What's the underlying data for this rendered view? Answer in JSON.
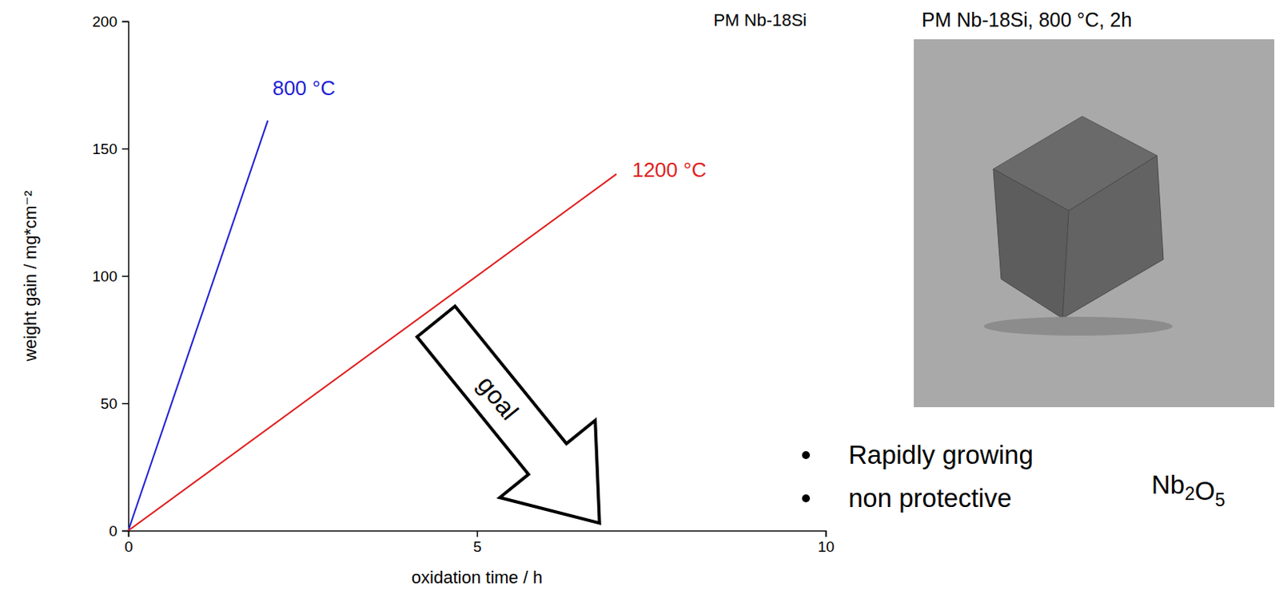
{
  "chart_data": {
    "type": "line",
    "title": "PM Nb-18Si",
    "x_label": "oxidation time / h",
    "y_label": "weight gain / mg*cm⁻²",
    "xlim": [
      0,
      10
    ],
    "xticks": [
      0,
      5,
      10
    ],
    "ylim": [
      0,
      200
    ],
    "yticks": [
      0,
      50,
      100,
      150,
      200
    ],
    "series": [
      {
        "name": "800 °C",
        "color": "#1f1fd6",
        "x": [
          0,
          2
        ],
        "values": [
          0,
          161
        ]
      },
      {
        "name": "1200 °C",
        "color": "#e01e1e",
        "x": [
          0,
          7
        ],
        "values": [
          0,
          140
        ]
      }
    ],
    "annotations": [
      {
        "text": "goal"
      }
    ]
  },
  "photo": {
    "caption": "PM Nb-18Si, 800 °C, 2h"
  },
  "notes": {
    "items": [
      "Rapidly growing",
      "non protective"
    ],
    "label": "Nb2O5"
  }
}
